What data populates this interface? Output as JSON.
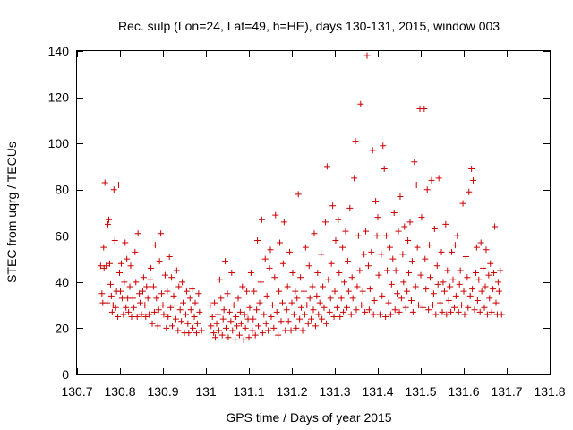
{
  "chart_data": {
    "type": "scatter",
    "title": "Rec. sulp (Lon=24, Lat=49, h=HE), days 130-131, 2015, window 003",
    "xlabel": "GPS time / Days of year 2015",
    "ylabel": "STEC from uqrg / TECUs",
    "xlim": [
      130.7,
      131.8
    ],
    "ylim": [
      0,
      140
    ],
    "xticks": [
      "130.7",
      "130.8",
      "130.9",
      "131",
      "131.1",
      "131.2",
      "131.3",
      "131.4",
      "131.5",
      "131.6",
      "131.7",
      "131.8"
    ],
    "yticks": [
      "0",
      "20",
      "40",
      "60",
      "80",
      "100",
      "120",
      "140"
    ],
    "grid": false,
    "marker": "+",
    "color": "#cc0000",
    "points": [
      [
        130.755,
        47
      ],
      [
        130.758,
        35
      ],
      [
        130.76,
        31
      ],
      [
        130.762,
        55
      ],
      [
        130.763,
        46
      ],
      [
        130.765,
        83
      ],
      [
        130.768,
        47
      ],
      [
        130.77,
        31
      ],
      [
        130.772,
        65
      ],
      [
        130.774,
        67
      ],
      [
        130.776,
        48
      ],
      [
        130.778,
        39
      ],
      [
        130.78,
        34
      ],
      [
        130.782,
        27
      ],
      [
        130.784,
        30
      ],
      [
        130.786,
        80
      ],
      [
        130.788,
        58
      ],
      [
        130.79,
        29
      ],
      [
        130.792,
        36
      ],
      [
        130.795,
        25
      ],
      [
        130.797,
        82
      ],
      [
        130.799,
        44
      ],
      [
        130.801,
        36
      ],
      [
        130.803,
        48
      ],
      [
        130.805,
        33
      ],
      [
        130.808,
        26
      ],
      [
        130.81,
        40
      ],
      [
        130.812,
        57
      ],
      [
        130.814,
        29
      ],
      [
        130.816,
        50
      ],
      [
        130.818,
        33
      ],
      [
        130.82,
        27
      ],
      [
        130.823,
        38
      ],
      [
        130.825,
        47
      ],
      [
        130.827,
        25
      ],
      [
        130.83,
        33
      ],
      [
        130.832,
        29
      ],
      [
        130.835,
        53
      ],
      [
        130.837,
        40
      ],
      [
        130.84,
        25
      ],
      [
        130.842,
        61
      ],
      [
        130.845,
        35
      ],
      [
        130.847,
        31
      ],
      [
        130.85,
        26
      ],
      [
        130.853,
        36
      ],
      [
        130.855,
        42
      ],
      [
        130.858,
        30
      ],
      [
        130.86,
        25
      ],
      [
        130.862,
        38
      ],
      [
        130.865,
        33
      ],
      [
        130.868,
        26
      ],
      [
        130.87,
        41
      ],
      [
        130.872,
        46
      ],
      [
        130.875,
        22
      ],
      [
        130.878,
        38
      ],
      [
        130.88,
        27
      ],
      [
        130.882,
        56
      ],
      [
        130.885,
        33
      ],
      [
        130.888,
        21
      ],
      [
        130.89,
        28
      ],
      [
        130.892,
        49
      ],
      [
        130.895,
        61
      ],
      [
        130.897,
        35
      ],
      [
        130.9,
        30
      ],
      [
        130.902,
        26
      ],
      [
        130.905,
        43
      ],
      [
        130.908,
        20
      ],
      [
        130.91,
        36
      ],
      [
        130.912,
        25
      ],
      [
        130.915,
        51
      ],
      [
        130.918,
        29
      ],
      [
        130.92,
        42
      ],
      [
        130.922,
        21
      ],
      [
        130.925,
        34
      ],
      [
        130.928,
        30
      ],
      [
        130.93,
        24
      ],
      [
        130.932,
        45
      ],
      [
        130.935,
        19
      ],
      [
        130.937,
        38
      ],
      [
        130.94,
        28
      ],
      [
        130.943,
        23
      ],
      [
        130.945,
        40
      ],
      [
        130.947,
        31
      ],
      [
        130.95,
        18
      ],
      [
        130.953,
        26
      ],
      [
        130.955,
        36
      ],
      [
        130.958,
        22
      ],
      [
        130.96,
        18
      ],
      [
        130.963,
        33
      ],
      [
        130.965,
        28
      ],
      [
        130.968,
        37
      ],
      [
        130.97,
        20
      ],
      [
        130.973,
        25
      ],
      [
        130.975,
        31
      ],
      [
        130.978,
        18
      ],
      [
        130.98,
        22
      ],
      [
        130.983,
        35
      ],
      [
        130.985,
        27
      ],
      [
        130.99,
        19
      ],
      [
        131.01,
        30
      ],
      [
        131.012,
        21
      ],
      [
        131.015,
        25
      ],
      [
        131.018,
        18
      ],
      [
        131.02,
        31
      ],
      [
        131.022,
        16
      ],
      [
        131.025,
        22
      ],
      [
        131.028,
        26
      ],
      [
        131.03,
        19
      ],
      [
        131.032,
        41
      ],
      [
        131.035,
        33
      ],
      [
        131.038,
        17
      ],
      [
        131.04,
        24
      ],
      [
        131.042,
        28
      ],
      [
        131.045,
        49
      ],
      [
        131.047,
        20
      ],
      [
        131.05,
        35
      ],
      [
        131.052,
        16
      ],
      [
        131.055,
        27
      ],
      [
        131.058,
        23
      ],
      [
        131.06,
        44
      ],
      [
        131.062,
        19
      ],
      [
        131.065,
        30
      ],
      [
        131.068,
        15
      ],
      [
        131.07,
        25
      ],
      [
        131.072,
        21
      ],
      [
        131.075,
        33
      ],
      [
        131.078,
        17
      ],
      [
        131.08,
        27
      ],
      [
        131.082,
        22
      ],
      [
        131.085,
        38
      ],
      [
        131.088,
        15
      ],
      [
        131.09,
        26
      ],
      [
        131.092,
        20
      ],
      [
        131.095,
        36
      ],
      [
        131.098,
        24
      ],
      [
        131.1,
        16
      ],
      [
        131.102,
        29
      ],
      [
        131.105,
        44
      ],
      [
        131.108,
        19
      ],
      [
        131.11,
        24
      ],
      [
        131.112,
        36
      ],
      [
        131.115,
        17
      ],
      [
        131.118,
        28
      ],
      [
        131.12,
        58
      ],
      [
        131.122,
        21
      ],
      [
        131.125,
        31
      ],
      [
        131.128,
        40
      ],
      [
        131.13,
        67
      ],
      [
        131.132,
        18
      ],
      [
        131.135,
        26
      ],
      [
        131.138,
        50
      ],
      [
        131.14,
        22
      ],
      [
        131.142,
        34
      ],
      [
        131.145,
        19
      ],
      [
        131.148,
        46
      ],
      [
        131.15,
        54
      ],
      [
        131.152,
        25
      ],
      [
        131.155,
        30
      ],
      [
        131.158,
        20
      ],
      [
        131.16,
        42
      ],
      [
        131.162,
        69
      ],
      [
        131.165,
        27
      ],
      [
        131.168,
        17
      ],
      [
        131.17,
        36
      ],
      [
        131.172,
        57
      ],
      [
        131.175,
        23
      ],
      [
        131.178,
        31
      ],
      [
        131.18,
        48
      ],
      [
        131.182,
        66
      ],
      [
        131.185,
        19
      ],
      [
        131.188,
        28
      ],
      [
        131.19,
        38
      ],
      [
        131.192,
        23
      ],
      [
        131.195,
        53
      ],
      [
        131.198,
        19
      ],
      [
        131.2,
        31
      ],
      [
        131.202,
        44
      ],
      [
        131.205,
        26
      ],
      [
        131.208,
        36
      ],
      [
        131.21,
        20
      ],
      [
        131.212,
        33
      ],
      [
        131.215,
        78
      ],
      [
        131.218,
        24
      ],
      [
        131.22,
        42
      ],
      [
        131.222,
        29
      ],
      [
        131.225,
        19
      ],
      [
        131.228,
        36
      ],
      [
        131.23,
        26
      ],
      [
        131.232,
        55
      ],
      [
        131.235,
        30
      ],
      [
        131.238,
        22
      ],
      [
        131.24,
        47
      ],
      [
        131.242,
        33
      ],
      [
        131.245,
        24
      ],
      [
        131.248,
        38
      ],
      [
        131.25,
        28
      ],
      [
        131.252,
        61
      ],
      [
        131.255,
        21
      ],
      [
        131.258,
        34
      ],
      [
        131.26,
        44
      ],
      [
        131.262,
        26
      ],
      [
        131.265,
        31
      ],
      [
        131.268,
        52
      ],
      [
        131.27,
        24
      ],
      [
        131.272,
        38
      ],
      [
        131.275,
        29
      ],
      [
        131.278,
        66
      ],
      [
        131.28,
        22
      ],
      [
        131.282,
        90
      ],
      [
        131.285,
        41
      ],
      [
        131.288,
        27
      ],
      [
        131.29,
        33
      ],
      [
        131.292,
        48
      ],
      [
        131.295,
        73
      ],
      [
        131.298,
        25
      ],
      [
        131.3,
        36
      ],
      [
        131.302,
        58
      ],
      [
        131.305,
        29
      ],
      [
        131.308,
        67
      ],
      [
        131.31,
        44
      ],
      [
        131.312,
        25
      ],
      [
        131.315,
        33
      ],
      [
        131.318,
        55
      ],
      [
        131.32,
        27
      ],
      [
        131.322,
        40
      ],
      [
        131.325,
        62
      ],
      [
        131.328,
        29
      ],
      [
        131.33,
        49
      ],
      [
        131.332,
        36
      ],
      [
        131.335,
        72
      ],
      [
        131.338,
        26
      ],
      [
        131.34,
        42
      ],
      [
        131.342,
        33
      ],
      [
        131.345,
        85
      ],
      [
        131.348,
        101
      ],
      [
        131.35,
        28
      ],
      [
        131.352,
        38
      ],
      [
        131.355,
        60
      ],
      [
        131.358,
        45
      ],
      [
        131.36,
        117
      ],
      [
        131.362,
        30
      ],
      [
        131.365,
        36
      ],
      [
        131.368,
        52
      ],
      [
        131.37,
        27
      ],
      [
        131.372,
        62
      ],
      [
        131.375,
        138
      ],
      [
        131.378,
        47
      ],
      [
        131.38,
        28
      ],
      [
        131.382,
        37
      ],
      [
        131.385,
        53
      ],
      [
        131.388,
        97
      ],
      [
        131.39,
        26
      ],
      [
        131.392,
        32
      ],
      [
        131.395,
        75
      ],
      [
        131.398,
        60
      ],
      [
        131.4,
        68
      ],
      [
        131.402,
        43
      ],
      [
        131.405,
        26
      ],
      [
        131.408,
        52
      ],
      [
        131.41,
        34
      ],
      [
        131.412,
        99
      ],
      [
        131.415,
        89
      ],
      [
        131.418,
        25
      ],
      [
        131.42,
        60
      ],
      [
        131.422,
        45
      ],
      [
        131.425,
        31
      ],
      [
        131.428,
        55
      ],
      [
        131.43,
        26
      ],
      [
        131.432,
        39
      ],
      [
        131.435,
        50
      ],
      [
        131.438,
        70
      ],
      [
        131.44,
        28
      ],
      [
        131.442,
        45
      ],
      [
        131.445,
        35
      ],
      [
        131.448,
        62
      ],
      [
        131.45,
        27
      ],
      [
        131.452,
        77
      ],
      [
        131.455,
        33
      ],
      [
        131.458,
        52
      ],
      [
        131.46,
        40
      ],
      [
        131.462,
        64
      ],
      [
        131.465,
        29
      ],
      [
        131.468,
        36
      ],
      [
        131.47,
        58
      ],
      [
        131.472,
        44
      ],
      [
        131.475,
        66
      ],
      [
        131.478,
        32
      ],
      [
        131.48,
        49
      ],
      [
        131.482,
        27
      ],
      [
        131.485,
        92
      ],
      [
        131.488,
        38
      ],
      [
        131.49,
        82
      ],
      [
        131.492,
        55
      ],
      [
        131.495,
        30
      ],
      [
        131.498,
        115
      ],
      [
        131.5,
        43
      ],
      [
        131.502,
        68
      ],
      [
        131.505,
        29
      ],
      [
        131.508,
        115
      ],
      [
        131.51,
        50
      ],
      [
        131.512,
        37
      ],
      [
        131.515,
        80
      ],
      [
        131.518,
        28
      ],
      [
        131.52,
        56
      ],
      [
        131.522,
        42
      ],
      [
        131.525,
        84
      ],
      [
        131.528,
        30
      ],
      [
        131.53,
        35
      ],
      [
        131.532,
        63
      ],
      [
        131.535,
        26
      ],
      [
        131.538,
        47
      ],
      [
        131.54,
        39
      ],
      [
        131.542,
        85
      ],
      [
        131.545,
        31
      ],
      [
        131.548,
        53
      ],
      [
        131.55,
        27
      ],
      [
        131.552,
        40
      ],
      [
        131.555,
        36
      ],
      [
        131.558,
        65
      ],
      [
        131.56,
        26
      ],
      [
        131.562,
        45
      ],
      [
        131.565,
        32
      ],
      [
        131.568,
        38
      ],
      [
        131.57,
        27
      ],
      [
        131.572,
        53
      ],
      [
        131.575,
        41
      ],
      [
        131.578,
        29
      ],
      [
        131.58,
        56
      ],
      [
        131.582,
        34
      ],
      [
        131.585,
        60
      ],
      [
        131.588,
        27
      ],
      [
        131.59,
        39
      ],
      [
        131.592,
        45
      ],
      [
        131.595,
        30
      ],
      [
        131.598,
        74
      ],
      [
        131.6,
        36
      ],
      [
        131.602,
        26
      ],
      [
        131.605,
        51
      ],
      [
        131.608,
        42
      ],
      [
        131.61,
        29
      ],
      [
        131.612,
        79
      ],
      [
        131.615,
        34
      ],
      [
        131.618,
        89
      ],
      [
        131.62,
        37
      ],
      [
        131.622,
        84
      ],
      [
        131.625,
        28
      ],
      [
        131.628,
        44
      ],
      [
        131.63,
        55
      ],
      [
        131.632,
        32
      ],
      [
        131.635,
        41
      ],
      [
        131.638,
        27
      ],
      [
        131.64,
        57
      ],
      [
        131.642,
        36
      ],
      [
        131.645,
        46
      ],
      [
        131.648,
        29
      ],
      [
        131.65,
        38
      ],
      [
        131.652,
        54
      ],
      [
        131.655,
        26
      ],
      [
        131.658,
        43
      ],
      [
        131.66,
        33
      ],
      [
        131.662,
        48
      ],
      [
        131.665,
        27
      ],
      [
        131.668,
        37
      ],
      [
        131.67,
        44
      ],
      [
        131.672,
        64
      ],
      [
        131.675,
        31
      ],
      [
        131.678,
        26
      ],
      [
        131.68,
        40
      ],
      [
        131.682,
        36
      ],
      [
        131.685,
        45
      ],
      [
        131.688,
        26
      ]
    ]
  }
}
